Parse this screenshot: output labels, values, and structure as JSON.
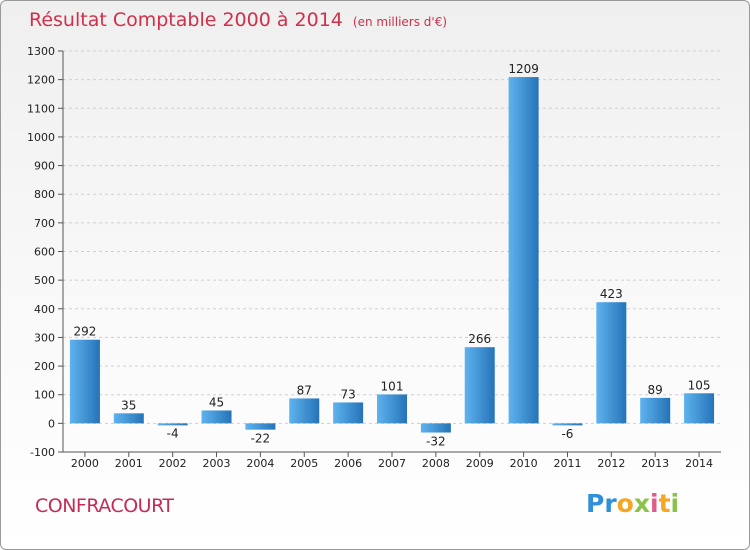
{
  "header": {
    "title": "Résultat Comptable 2000 à 2014",
    "subtitle": "(en milliers d'€)"
  },
  "footer": {
    "place": "CONFRACOURT",
    "brand": [
      {
        "ch": "P",
        "color": "#2f8fd8"
      },
      {
        "ch": "r",
        "color": "#2f8fd8"
      },
      {
        "ch": "o",
        "color": "#f5a623"
      },
      {
        "ch": "x",
        "color": "#8bc34a"
      },
      {
        "ch": "i",
        "color": "#e05a8a"
      },
      {
        "ch": "t",
        "color": "#f5a623"
      },
      {
        "ch": "i",
        "color": "#8bc34a"
      }
    ]
  },
  "colors": {
    "bar_light": "#5eb3ee",
    "bar_dark": "#2673b8",
    "axis": "#555555",
    "grid": "#cfcfcf",
    "text": "#222222"
  },
  "chart_data": {
    "type": "bar",
    "title": "Résultat Comptable 2000 à 2014",
    "subtitle": "(en milliers d'€)",
    "categories": [
      "2000",
      "2001",
      "2002",
      "2003",
      "2004",
      "2005",
      "2006",
      "2007",
      "2008",
      "2009",
      "2010",
      "2011",
      "2012",
      "2013",
      "2014"
    ],
    "values": [
      292,
      35,
      -4,
      45,
      -22,
      87,
      73,
      101,
      -32,
      266,
      1209,
      -6,
      423,
      89,
      105
    ],
    "ylim": [
      -100,
      1300
    ],
    "yticks": [
      -100,
      0,
      100,
      200,
      300,
      400,
      500,
      600,
      700,
      800,
      900,
      1000,
      1100,
      1200,
      1300
    ],
    "grid": true,
    "data_labels": true
  }
}
